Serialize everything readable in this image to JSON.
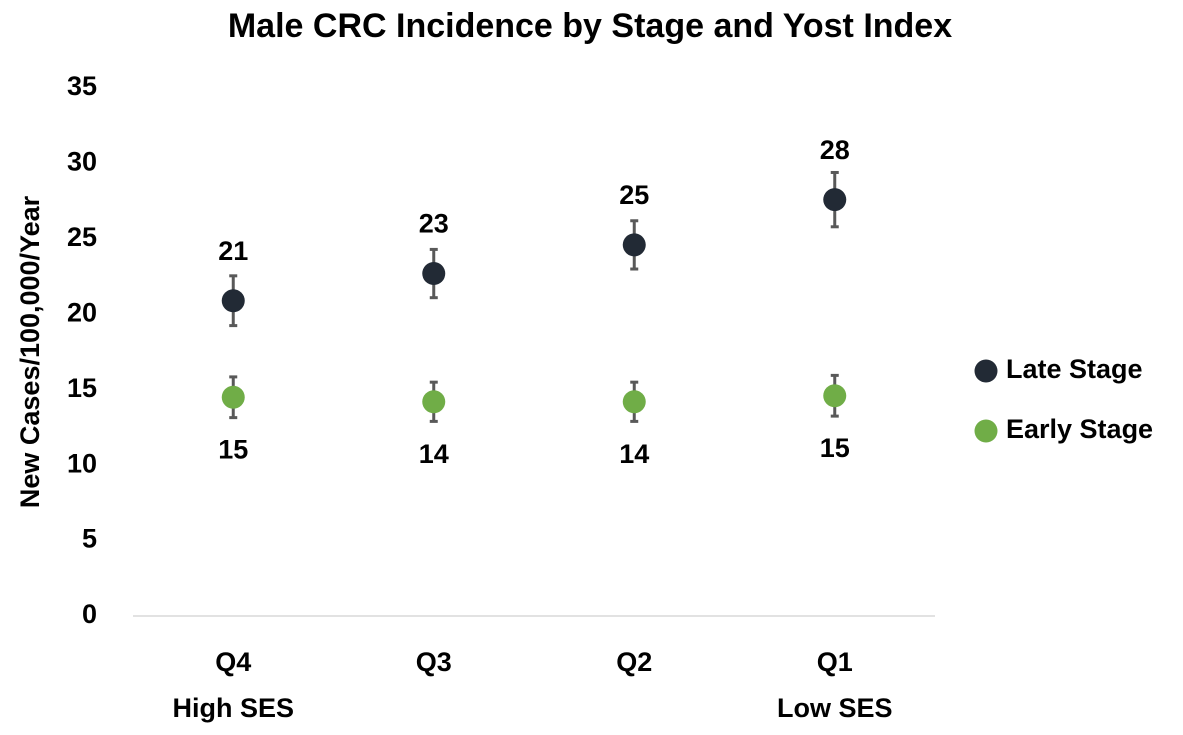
{
  "chart_data": {
    "type": "scatter",
    "title": "Male CRC Incidence by Stage and Yost Index",
    "y_label": "New Cases/100,000/Year",
    "categories": [
      "Q4\nHigh SES",
      "Q3",
      "Q2",
      "Q1\nLow SES"
    ],
    "series": [
      {
        "name": "Late Stage",
        "color": "#222a35",
        "values": [
          20.9,
          22.7,
          24.6,
          27.6
        ],
        "errors": [
          1.65,
          1.6,
          1.6,
          1.8
        ],
        "value_labels": [
          "21",
          "23",
          "25",
          "28"
        ],
        "label_position": "above"
      },
      {
        "name": "Early Stage",
        "color": "#70ad47",
        "values": [
          14.5,
          14.2,
          14.2,
          14.6
        ],
        "errors": [
          1.35,
          1.3,
          1.3,
          1.35
        ],
        "value_labels": [
          "15",
          "14",
          "14",
          "15"
        ],
        "label_position": "below"
      }
    ],
    "ylim": [
      0,
      35
    ],
    "yticks": [
      0,
      5,
      10,
      15,
      20,
      25,
      30,
      35
    ],
    "grid": false,
    "legend": "right"
  }
}
